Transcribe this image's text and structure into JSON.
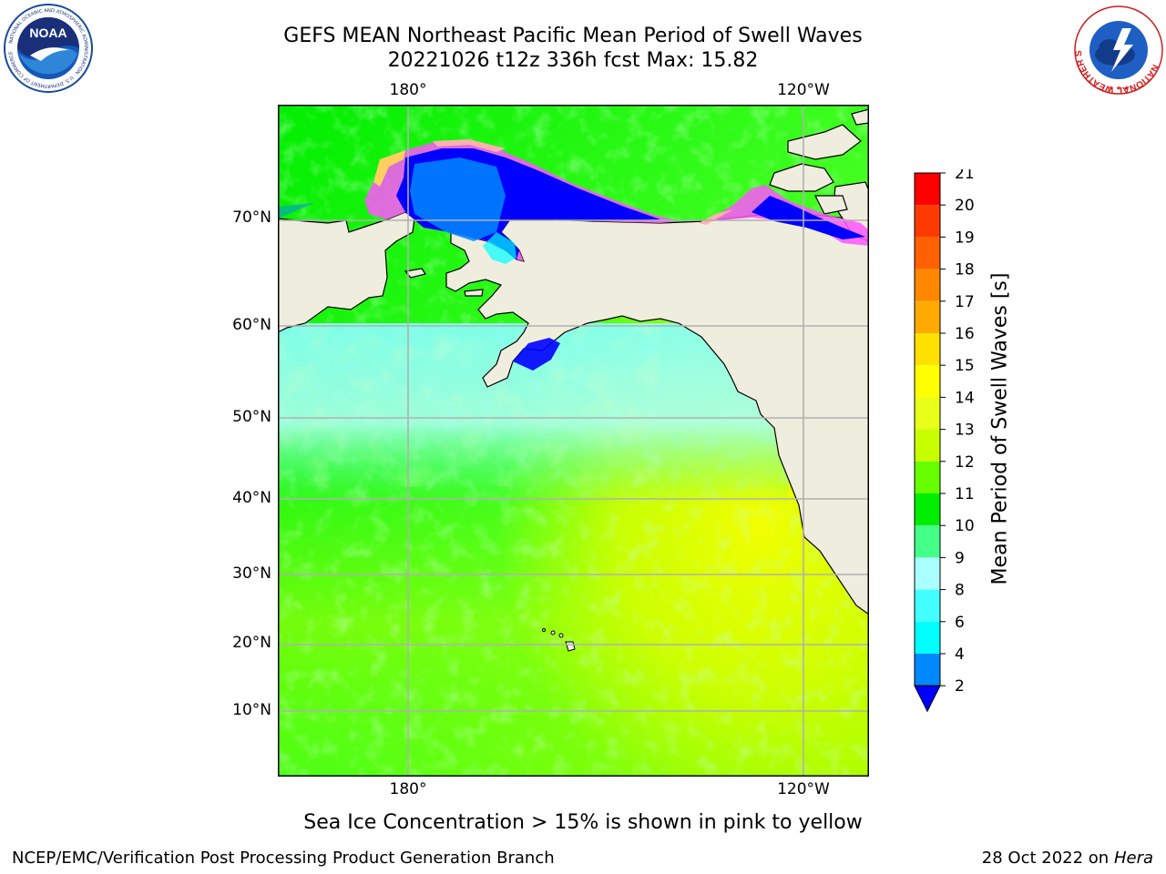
{
  "header": {
    "title_line1": "GEFS MEAN Northeast Pacific Mean Period of Swell Waves",
    "title_line2": "20221026 t12z 336h fcst   Max: 15.82"
  },
  "logos": {
    "noaa": {
      "text": "NOAA",
      "ring_text": "NATIONAL OCEANIC AND ATMOSPHERIC ADMINISTRATION · U.S. DEPARTMENT OF COMMERCE"
    },
    "nws": {
      "ring_text": "NATIONAL WEATHER SERVICE"
    }
  },
  "map": {
    "lat_labels": [
      "70°N",
      "60°N",
      "50°N",
      "40°N",
      "30°N",
      "20°N",
      "10°N"
    ],
    "lon_labels_top": [
      "180°",
      "120°W"
    ],
    "lon_labels_bottom": [
      "180°",
      "120°W"
    ],
    "land_color": "#efedde",
    "ice_colors": [
      "#ff55ff",
      "#ffb0b0",
      "#ffd060"
    ]
  },
  "colorbar": {
    "label": "Mean Period of Swell Waves [s]",
    "ticks": [
      "21",
      "20",
      "19",
      "18",
      "17",
      "16",
      "15",
      "14",
      "13",
      "12",
      "11",
      "10",
      "9",
      "8",
      "6",
      "4",
      "2"
    ],
    "colors_top_to_bottom": [
      "#ff0000",
      "#ff3a00",
      "#ff6000",
      "#ff8800",
      "#ffaa00",
      "#ffe000",
      "#ffff00",
      "#e8ff1a",
      "#c8ff00",
      "#66ff00",
      "#00ee00",
      "#44ff88",
      "#aaffff",
      "#44ffff",
      "#00ffff",
      "#0088ff"
    ],
    "extend_color": "#0000ff"
  },
  "footer": {
    "caption": "Sea Ice Concentration > 15% is shown in pink to yellow",
    "credit": "NCEP/EMC/Verification Post Processing Product Generation Branch",
    "date": "28 Oct 2022 on ",
    "machine": "Hera"
  }
}
